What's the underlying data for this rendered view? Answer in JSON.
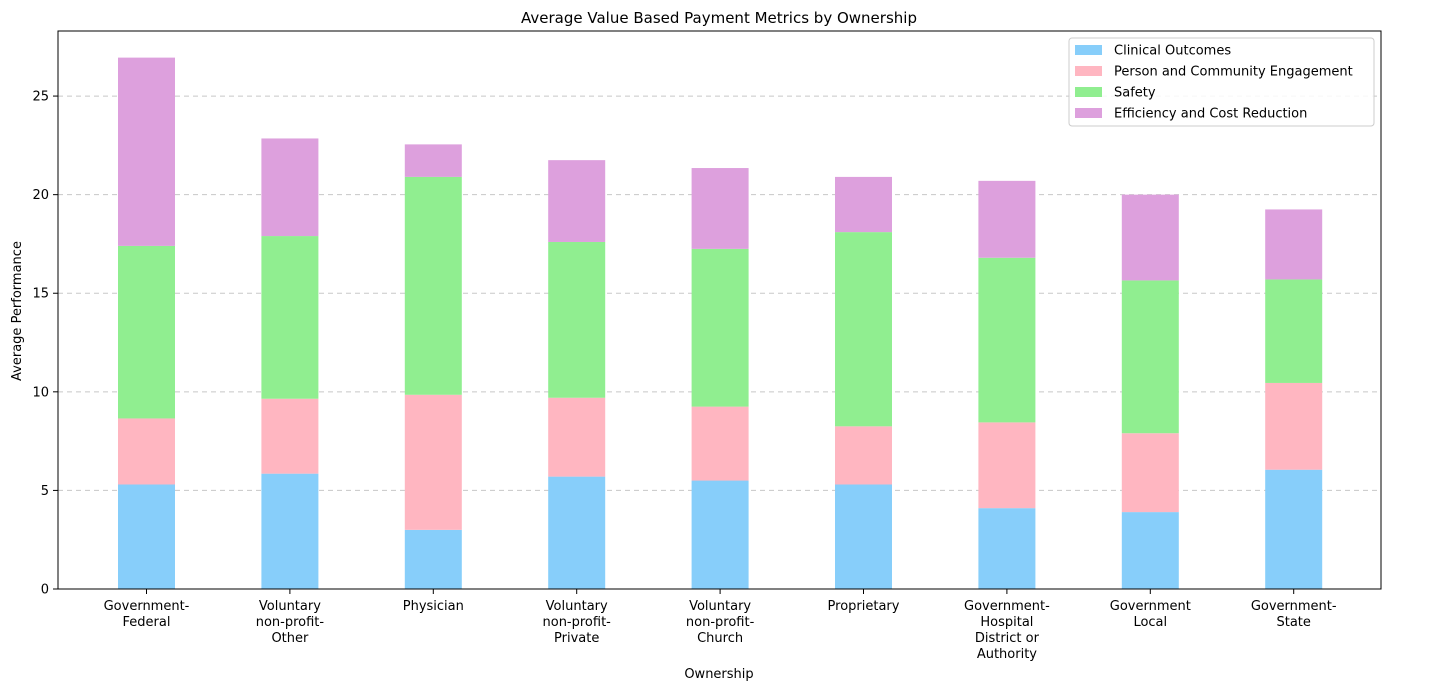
{
  "chart_data": {
    "type": "bar",
    "stacked": true,
    "title": "Average Value Based Payment Metrics by Ownership",
    "xlabel": "Ownership",
    "ylabel": "Average Performance",
    "ylim": [
      0,
      28.3
    ],
    "yticks": [
      0,
      5,
      10,
      15,
      20,
      25
    ],
    "grid": "y-dashed",
    "legend_position": "top-right",
    "categories": [
      "Government-\nFederal",
      "Voluntary\nnon-profit-\nOther",
      "Physician",
      "Voluntary\nnon-profit-\nPrivate",
      "Voluntary\nnon-profit-\nChurch",
      "Proprietary",
      "Government-\nHospital\nDistrict or\nAuthority",
      "Government\nLocal",
      "Government-\nState"
    ],
    "series": [
      {
        "name": "Clinical Outcomes",
        "color": "#87CEFA",
        "values": [
          5.3,
          5.85,
          3.0,
          5.7,
          5.5,
          5.3,
          4.1,
          3.9,
          6.05
        ]
      },
      {
        "name": "Person and Community Engagement",
        "color": "#FFB6C1",
        "values": [
          3.35,
          3.8,
          6.85,
          4.0,
          3.75,
          2.95,
          4.35,
          4.0,
          4.4
        ]
      },
      {
        "name": "Safety",
        "color": "#90EE90",
        "values": [
          8.75,
          8.25,
          11.05,
          7.9,
          8.0,
          9.85,
          8.35,
          7.75,
          5.25
        ]
      },
      {
        "name": "Efficiency and Cost Reduction",
        "color": "#DDA0DD",
        "values": [
          9.55,
          4.95,
          1.65,
          4.15,
          4.1,
          2.8,
          3.9,
          4.35,
          3.55
        ]
      }
    ]
  }
}
